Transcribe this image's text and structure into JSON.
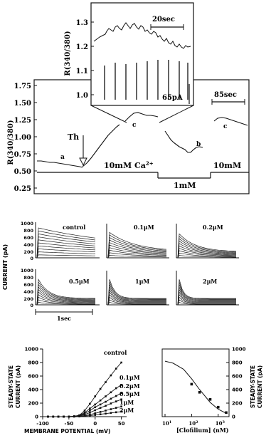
{
  "panel_a": {
    "y_axis_label": "R(340/380)",
    "y_ticks": [
      "1.75",
      "1.50",
      "1.25",
      "1.00",
      "0.75",
      "0.50",
      "0.25"
    ],
    "trace_labels": [
      "a",
      "Th",
      "c",
      "b",
      "c"
    ],
    "scale_85": "85sec",
    "ca_10": "10mM Ca",
    "ca_10_sup": "2+",
    "ca_1": "1mM",
    "ca_10b": "10mM",
    "inset": {
      "y_axis_label": "R(340/380)",
      "y_ticks": [
        "1.3",
        "1.2",
        "1.1",
        "1.0"
      ],
      "scale_time": "20sec",
      "scale_current": "65pA"
    }
  },
  "panel_b": {
    "y_axis_label": "CURRENT (pA)",
    "y_ticks": [
      "1000",
      "800",
      "600",
      "400",
      "200",
      "0"
    ],
    "x_scale": "1sec",
    "traces": [
      {
        "label": "control"
      },
      {
        "label": "0.1μM"
      },
      {
        "label": "0.2μM"
      },
      {
        "label": "0.5μM"
      },
      {
        "label": "1μM"
      },
      {
        "label": "2μM"
      }
    ]
  },
  "panel_c_left": {
    "y_axis_label_1": "STEADY-STATE",
    "y_axis_label_2": "CURRENT (pA)",
    "x_axis_label": "MEMBRANE POTENTIAL (mV)",
    "x_ticks": [
      "-100",
      "-50",
      "0",
      "50"
    ],
    "y_ticks": [
      "1000",
      "800",
      "600",
      "400",
      "200",
      "0"
    ],
    "series_labels": [
      "control",
      "0.1μM",
      "0.2μM",
      "0.5μM",
      "1μM",
      "2μM"
    ]
  },
  "panel_c_right": {
    "x_axis_label": "[Clofilium] (nM)",
    "x_ticks": [
      "10",
      "10",
      "10"
    ],
    "x_tick_exps": [
      "1",
      "2",
      "3"
    ],
    "y_axis_label_1": "STEADY-STATE",
    "y_axis_label_2": "CURRENT (pA)",
    "y_ticks": [
      "1000",
      "800",
      "600",
      "400",
      "200",
      "0"
    ]
  },
  "chart_data": [
    {
      "type": "line",
      "xlabel": "MEMBRANE POTENTIAL (mV)",
      "ylabel": "STEADY-STATE CURRENT (pA)",
      "xlim": [
        -100,
        60
      ],
      "ylim": [
        0,
        1000
      ],
      "x": [
        -90,
        -80,
        -70,
        -60,
        -50,
        -40,
        -30,
        -20,
        -10,
        0,
        10,
        20,
        30,
        40,
        50
      ],
      "series": [
        {
          "name": "control",
          "values": [
            0,
            0,
            0,
            0,
            0,
            5,
            20,
            90,
            190,
            300,
            410,
            510,
            610,
            710,
            800
          ]
        },
        {
          "name": "0.1μM",
          "values": [
            0,
            0,
            0,
            0,
            0,
            5,
            18,
            60,
            120,
            180,
            240,
            300,
            360,
            420,
            470
          ]
        },
        {
          "name": "0.2μM",
          "values": [
            0,
            0,
            0,
            0,
            0,
            4,
            15,
            45,
            90,
            140,
            180,
            220,
            265,
            305,
            350
          ]
        },
        {
          "name": "0.5μM",
          "values": [
            0,
            0,
            0,
            0,
            0,
            3,
            10,
            30,
            60,
            95,
            130,
            160,
            195,
            225,
            255
          ]
        },
        {
          "name": "1μM",
          "values": [
            0,
            0,
            0,
            0,
            0,
            2,
            6,
            15,
            30,
            50,
            70,
            90,
            110,
            130,
            150
          ]
        },
        {
          "name": "2μM",
          "values": [
            0,
            0,
            0,
            0,
            0,
            1,
            3,
            8,
            15,
            25,
            35,
            45,
            55,
            65,
            75
          ]
        }
      ]
    },
    {
      "type": "scatter",
      "xlabel": "[Clofilium] (nM)",
      "ylabel": "STEADY-STATE CURRENT (pA)",
      "x_scale": "log",
      "xlim": [
        10,
        2000
      ],
      "ylim": [
        0,
        1000
      ],
      "points": [
        {
          "x": 100,
          "y": 480
        },
        {
          "x": 200,
          "y": 360
        },
        {
          "x": 500,
          "y": 255
        },
        {
          "x": 1000,
          "y": 140
        },
        {
          "x": 2000,
          "y": 60
        }
      ],
      "fit_curve": [
        {
          "x": 10,
          "y": 820
        },
        {
          "x": 20,
          "y": 790
        },
        {
          "x": 50,
          "y": 700
        },
        {
          "x": 100,
          "y": 560
        },
        {
          "x": 200,
          "y": 400
        },
        {
          "x": 500,
          "y": 210
        },
        {
          "x": 1000,
          "y": 110
        },
        {
          "x": 2000,
          "y": 50
        }
      ]
    }
  ]
}
